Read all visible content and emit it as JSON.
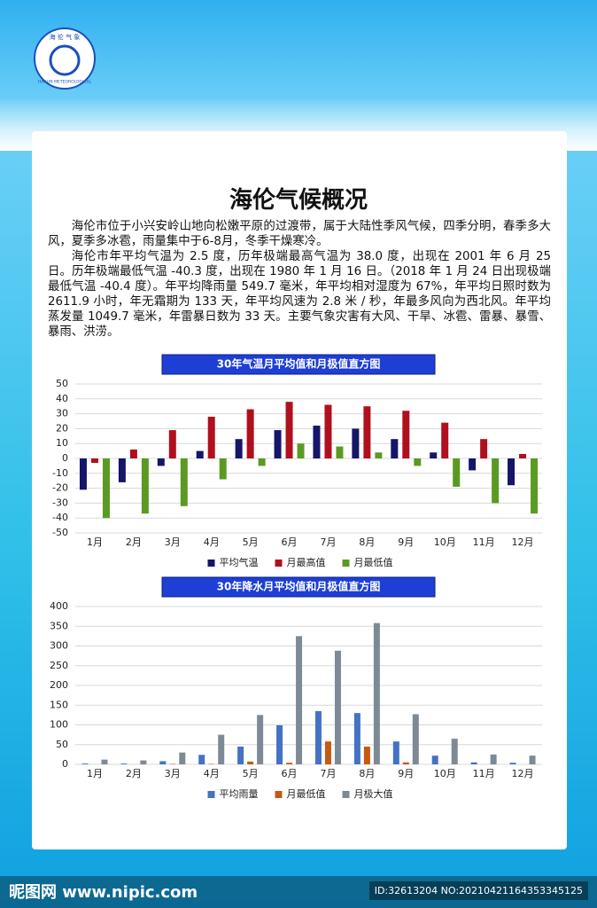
{
  "logo": {
    "top": "海 伦 气 象",
    "bottom": "HAILUN METEOROLOGICAL"
  },
  "title": "海伦气候概况",
  "paragraphs": [
    "海伦市位于小兴安岭山地向松嫩平原的过渡带，属于大陆性季风气候，四季分明，春季多大风，夏季多冰雹，雨量集中于6-8月，冬季干燥寒冷。",
    "海伦市年平均气温为 2.5 度，历年极端最高气温为 38.0 度，出现在 2001 年 6 月 25 日。历年极端最低气温 -40.3 度，出现在 1980 年 1 月 16 日。（2018 年 1 月 24 日出现极端最低气温 -40.4 度）。年平均降雨量 549.7 毫米，年平均相对湿度为 67%，年平均日照时数为 2611.9 小时，年无霜期为 133 天，年平均风速为 2.8 米 / 秒，年最多风向为西北风。年平均蒸发量 1049.7 毫米，年雷暴日数为 33 天。主要气象灾害有大风、干旱、冰雹、雷暴、暴雪、暴雨、洪涝。"
  ],
  "chart_data": [
    {
      "type": "bar",
      "title": "30年气温月平均值和月极值直方图",
      "categories": [
        "1月",
        "2月",
        "3月",
        "4月",
        "5月",
        "6月",
        "7月",
        "8月",
        "9月",
        "10月",
        "11月",
        "12月"
      ],
      "series": [
        {
          "name": "平均气温",
          "color": "#15156a",
          "values": [
            -21,
            -16,
            -5,
            5,
            13,
            19,
            22,
            20,
            13,
            4,
            -8,
            -18
          ]
        },
        {
          "name": "月最高值",
          "color": "#b0101e",
          "values": [
            -3,
            6,
            19,
            28,
            33,
            38,
            36,
            35,
            32,
            24,
            13,
            3
          ]
        },
        {
          "name": "月最低值",
          "color": "#5a9a22",
          "values": [
            -40,
            -37,
            -32,
            -14,
            -5,
            10,
            8,
            4,
            -5,
            -19,
            -30,
            -37
          ]
        }
      ],
      "ylim": [
        -50,
        50
      ],
      "yticks": [
        -50,
        -40,
        -30,
        -20,
        -10,
        0,
        10,
        20,
        30,
        40,
        50
      ],
      "grid": true
    },
    {
      "type": "bar",
      "title": "30年降水月平均值和月极值直方图",
      "categories": [
        "1月",
        "2月",
        "3月",
        "4月",
        "5月",
        "6月",
        "7月",
        "8月",
        "9月",
        "10月",
        "11月",
        "12月"
      ],
      "series": [
        {
          "name": "平均雨量",
          "color": "#4472c4",
          "values": [
            2,
            2,
            8,
            24,
            45,
            99,
            135,
            130,
            58,
            22,
            5,
            4
          ]
        },
        {
          "name": "月最低值",
          "color": "#c55a11",
          "values": [
            0,
            0,
            1,
            1,
            7,
            4,
            58,
            45,
            5,
            0,
            0,
            0
          ]
        },
        {
          "name": "月极大值",
          "color": "#7d8a96",
          "values": [
            12,
            10,
            30,
            75,
            125,
            325,
            288,
            358,
            127,
            65,
            25,
            22
          ]
        }
      ],
      "ylim": [
        0,
        400
      ],
      "yticks": [
        0,
        50,
        100,
        150,
        200,
        250,
        300,
        350,
        400
      ],
      "grid": true
    }
  ],
  "watermark": {
    "site": "昵图网 www.nipic.com",
    "id": "ID:32613204 NO:20210421164353345125"
  }
}
